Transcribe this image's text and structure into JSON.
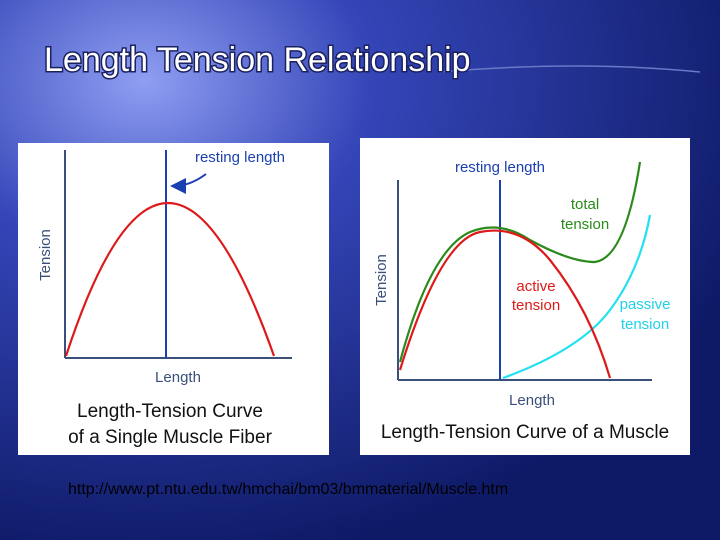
{
  "title": "Length Tension Relationship",
  "figures": [
    {
      "resting_label": "resting length",
      "y_label": "Tension",
      "x_label": "Length",
      "caption_lines": [
        "Length-Tension Curve",
        "of a Single Muscle Fiber"
      ]
    },
    {
      "resting_label": "resting length",
      "y_label": "Tension",
      "x_label": "Length",
      "caption_lines": [
        "Length-Tension Curve of a Muscle"
      ],
      "curve_labels": {
        "total": [
          "total",
          "tension"
        ],
        "active": [
          "active",
          "tension"
        ],
        "passive": [
          "passive",
          "tension"
        ]
      }
    }
  ],
  "source_url": "http://www.pt.ntu.edu.tw/hmchai/bm03/bmmaterial/Muscle.htm"
}
